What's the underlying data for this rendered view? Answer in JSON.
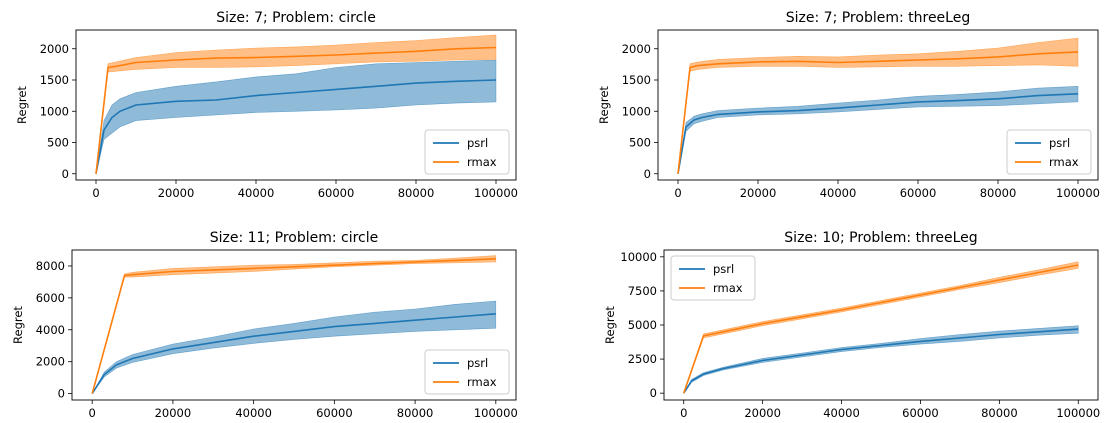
{
  "chart_data": [
    {
      "type": "line",
      "title": "Size: 7; Problem: circle",
      "xlabel": "",
      "ylabel": "Regret",
      "xlim": [
        -5000,
        105000
      ],
      "ylim": [
        -100,
        2300
      ],
      "xticks": [
        0,
        20000,
        40000,
        60000,
        80000,
        100000
      ],
      "yticks": [
        0,
        500,
        1000,
        1500,
        2000
      ],
      "legend_loc": "lower-right",
      "series": [
        {
          "name": "psrl",
          "color": "#1f77b4",
          "x": [
            0,
            2000,
            4000,
            6000,
            10000,
            20000,
            30000,
            40000,
            50000,
            60000,
            70000,
            80000,
            90000,
            100000
          ],
          "y": [
            0,
            700,
            900,
            1000,
            1100,
            1160,
            1180,
            1250,
            1300,
            1350,
            1400,
            1450,
            1480,
            1500
          ],
          "lower": [
            0,
            550,
            650,
            750,
            850,
            900,
            940,
            980,
            1000,
            1020,
            1050,
            1100,
            1130,
            1150
          ],
          "upper": [
            0,
            850,
            1100,
            1200,
            1300,
            1400,
            1470,
            1550,
            1600,
            1700,
            1760,
            1780,
            1800,
            1820
          ]
        },
        {
          "name": "rmax",
          "color": "#ff7f0e",
          "x": [
            0,
            3000,
            5000,
            10000,
            20000,
            30000,
            40000,
            50000,
            60000,
            70000,
            80000,
            90000,
            100000
          ],
          "y": [
            0,
            1700,
            1720,
            1780,
            1820,
            1850,
            1860,
            1880,
            1900,
            1930,
            1960,
            2000,
            2020
          ],
          "lower": [
            0,
            1630,
            1640,
            1670,
            1700,
            1700,
            1710,
            1730,
            1760,
            1790,
            1800,
            1820,
            1830
          ],
          "upper": [
            0,
            1760,
            1790,
            1860,
            1940,
            1980,
            2010,
            2030,
            2060,
            2100,
            2130,
            2180,
            2220
          ]
        }
      ]
    },
    {
      "type": "line",
      "title": "Size: 7; Problem: threeLeg",
      "xlabel": "",
      "ylabel": "Regret",
      "xlim": [
        -5000,
        105000
      ],
      "ylim": [
        -100,
        2300
      ],
      "xticks": [
        0,
        20000,
        40000,
        60000,
        80000,
        100000
      ],
      "yticks": [
        0,
        500,
        1000,
        1500,
        2000
      ],
      "legend_loc": "lower-right",
      "series": [
        {
          "name": "psrl",
          "color": "#1f77b4",
          "x": [
            0,
            2000,
            4000,
            6000,
            10000,
            20000,
            30000,
            40000,
            50000,
            60000,
            70000,
            80000,
            90000,
            100000
          ],
          "y": [
            0,
            750,
            860,
            900,
            950,
            990,
            1010,
            1050,
            1100,
            1150,
            1170,
            1200,
            1250,
            1280
          ],
          "lower": [
            0,
            680,
            800,
            840,
            900,
            940,
            960,
            990,
            1030,
            1070,
            1080,
            1090,
            1120,
            1150
          ],
          "upper": [
            0,
            820,
            920,
            960,
            1010,
            1050,
            1080,
            1130,
            1180,
            1240,
            1270,
            1310,
            1370,
            1400
          ]
        },
        {
          "name": "rmax",
          "color": "#ff7f0e",
          "x": [
            0,
            3000,
            5000,
            10000,
            20000,
            30000,
            40000,
            50000,
            60000,
            70000,
            80000,
            90000,
            100000
          ],
          "y": [
            0,
            1700,
            1730,
            1760,
            1790,
            1800,
            1780,
            1800,
            1820,
            1840,
            1870,
            1920,
            1950
          ],
          "lower": [
            0,
            1640,
            1670,
            1700,
            1720,
            1720,
            1700,
            1710,
            1720,
            1720,
            1730,
            1740,
            1720
          ],
          "upper": [
            0,
            1760,
            1790,
            1830,
            1860,
            1880,
            1870,
            1900,
            1920,
            1960,
            2010,
            2100,
            2170
          ]
        }
      ]
    },
    {
      "type": "line",
      "title": "Size: 11; Problem: circle",
      "xlabel": "",
      "ylabel": "Regret",
      "xlim": [
        -5000,
        105000
      ],
      "ylim": [
        -400,
        9000
      ],
      "xticks": [
        0,
        20000,
        40000,
        60000,
        80000,
        100000
      ],
      "yticks": [
        0,
        2000,
        4000,
        6000,
        8000
      ],
      "legend_loc": "lower-right",
      "series": [
        {
          "name": "psrl",
          "color": "#1f77b4",
          "x": [
            0,
            3000,
            6000,
            10000,
            20000,
            30000,
            40000,
            50000,
            60000,
            70000,
            80000,
            90000,
            100000
          ],
          "y": [
            0,
            1200,
            1800,
            2200,
            2800,
            3200,
            3600,
            3900,
            4200,
            4400,
            4600,
            4800,
            5000
          ],
          "lower": [
            0,
            1050,
            1600,
            1950,
            2500,
            2850,
            3150,
            3400,
            3600,
            3750,
            3900,
            4000,
            4100
          ],
          "upper": [
            0,
            1350,
            2000,
            2450,
            3100,
            3550,
            4050,
            4400,
            4800,
            5100,
            5300,
            5600,
            5800
          ]
        },
        {
          "name": "rmax",
          "color": "#ff7f0e",
          "x": [
            0,
            8000,
            10000,
            20000,
            30000,
            40000,
            50000,
            60000,
            70000,
            80000,
            90000,
            100000
          ],
          "y": [
            0,
            7400,
            7450,
            7650,
            7750,
            7850,
            7950,
            8050,
            8150,
            8250,
            8350,
            8450
          ],
          "lower": [
            0,
            7300,
            7300,
            7450,
            7550,
            7650,
            7800,
            7950,
            8050,
            8150,
            8200,
            8250
          ],
          "upper": [
            0,
            7500,
            7600,
            7850,
            7950,
            8050,
            8100,
            8200,
            8300,
            8350,
            8500,
            8650
          ]
        }
      ]
    },
    {
      "type": "line",
      "title": "Size: 10; Problem: threeLeg",
      "xlabel": "",
      "ylabel": "Regret",
      "xlim": [
        -5000,
        105000
      ],
      "ylim": [
        -500,
        10500
      ],
      "xticks": [
        0,
        20000,
        40000,
        60000,
        80000,
        100000
      ],
      "yticks": [
        0,
        2500,
        5000,
        7500,
        10000
      ],
      "legend_loc": "upper-left",
      "series": [
        {
          "name": "psrl",
          "color": "#1f77b4",
          "x": [
            0,
            2000,
            5000,
            10000,
            20000,
            30000,
            40000,
            50000,
            60000,
            70000,
            80000,
            90000,
            100000
          ],
          "y": [
            0,
            900,
            1400,
            1800,
            2400,
            2800,
            3200,
            3500,
            3800,
            4050,
            4300,
            4500,
            4700
          ],
          "lower": [
            0,
            800,
            1300,
            1700,
            2250,
            2650,
            3050,
            3350,
            3600,
            3800,
            4050,
            4250,
            4400
          ],
          "upper": [
            0,
            1000,
            1500,
            1900,
            2550,
            2950,
            3350,
            3650,
            4000,
            4300,
            4550,
            4750,
            4950
          ]
        },
        {
          "name": "rmax",
          "color": "#ff7f0e",
          "x": [
            0,
            5000,
            10000,
            20000,
            30000,
            40000,
            50000,
            60000,
            70000,
            80000,
            90000,
            100000
          ],
          "y": [
            0,
            4200,
            4500,
            5100,
            5600,
            6100,
            6650,
            7200,
            7750,
            8300,
            8850,
            9400
          ],
          "lower": [
            0,
            4050,
            4350,
            4950,
            5450,
            5950,
            6500,
            7050,
            7600,
            8100,
            8650,
            9150
          ],
          "upper": [
            0,
            4350,
            4650,
            5250,
            5750,
            6250,
            6800,
            7350,
            7900,
            8500,
            9050,
            9650
          ]
        }
      ]
    }
  ]
}
